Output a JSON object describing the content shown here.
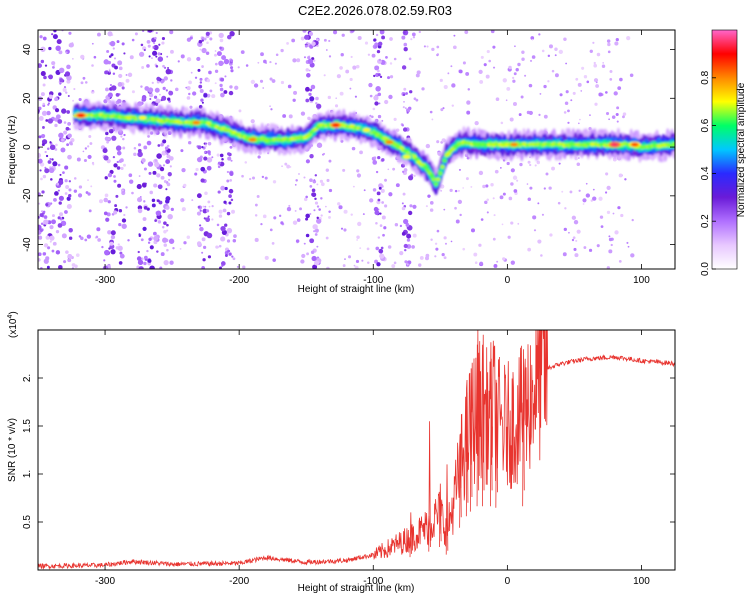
{
  "title": "C2E2.2026.078.02.59.R03",
  "charts": [
    {
      "type": "heatmap",
      "xlabel": "Height of straight line (km)",
      "ylabel": "Frequency (Hz)",
      "xlim": [
        -350,
        125
      ],
      "ylim": [
        -50,
        48
      ],
      "xticks": [
        -300,
        -200,
        -100,
        0,
        100
      ],
      "yticks": [
        -40,
        -20,
        0,
        20,
        40
      ],
      "grid": false,
      "colorbar": {
        "label": "Normalized spectral amplitude",
        "range": [
          0,
          1
        ],
        "ticks": [
          0.0,
          0.2,
          0.4,
          0.6,
          0.8
        ],
        "colors": [
          "#ffffff",
          "#e8c8ff",
          "#b070ff",
          "#6a1bd8",
          "#2a2aff",
          "#00c8ff",
          "#00ff66",
          "#ffff00",
          "#ff8800",
          "#ff0000",
          "#ff66cc"
        ]
      },
      "ridge": [
        [
          -322,
          13
        ],
        [
          -300,
          13
        ],
        [
          -280,
          12
        ],
        [
          -260,
          11
        ],
        [
          -240,
          10
        ],
        [
          -225,
          10
        ],
        [
          -210,
          7
        ],
        [
          -195,
          4
        ],
        [
          -180,
          3
        ],
        [
          -165,
          3
        ],
        [
          -150,
          4
        ],
        [
          -140,
          9
        ],
        [
          -125,
          9
        ],
        [
          -110,
          8
        ],
        [
          -100,
          6
        ],
        [
          -90,
          3
        ],
        [
          -80,
          0
        ],
        [
          -70,
          -4
        ],
        [
          -60,
          -9
        ],
        [
          -53,
          -15
        ],
        [
          -45,
          -3
        ],
        [
          -35,
          2
        ],
        [
          -20,
          1
        ],
        [
          0,
          1
        ],
        [
          20,
          1
        ],
        [
          60,
          1
        ],
        [
          90,
          1
        ],
        [
          100,
          0
        ],
        [
          125,
          1
        ]
      ],
      "bright_spots": [
        {
          "x": -318,
          "y": 13,
          "level": 0.9
        },
        {
          "x": -272,
          "y": 12,
          "level": 0.7
        },
        {
          "x": -232,
          "y": 10,
          "level": 0.8
        },
        {
          "x": -190,
          "y": 3,
          "level": 0.8
        },
        {
          "x": -128,
          "y": 9,
          "level": 0.9
        },
        {
          "x": -105,
          "y": 7,
          "level": 0.7
        },
        {
          "x": -88,
          "y": 2,
          "level": 0.8
        },
        {
          "x": -75,
          "y": -4,
          "level": 0.7
        },
        {
          "x": 5,
          "y": 1,
          "level": 0.8
        },
        {
          "x": 80,
          "y": 1,
          "level": 0.95
        },
        {
          "x": 95,
          "y": 1,
          "level": 0.85
        }
      ],
      "noise_bands": [
        [
          -350,
          -325
        ],
        [
          -300,
          -285
        ],
        [
          -275,
          -250
        ],
        [
          -230,
          -222
        ],
        [
          -215,
          -205
        ],
        [
          -150,
          -140
        ],
        [
          -100,
          -92
        ],
        [
          -78,
          -72
        ]
      ]
    },
    {
      "type": "line",
      "xlabel": "Height of straight line (km)",
      "ylabel": "SNR (10 * v/v)",
      "multiplier": "(x10",
      "multiplier_exp": "4",
      "multiplier_close": ")",
      "xlim": [
        -350,
        125
      ],
      "ylim": [
        0,
        2.5
      ],
      "xticks": [
        -300,
        -200,
        -100,
        0,
        100
      ],
      "yticks": [
        0.5,
        1.0,
        1.5,
        2.0
      ],
      "ytick_labels": [
        "0.5",
        "1.",
        "1.5",
        "2."
      ],
      "grid": false,
      "color": "#e8342f",
      "envelope": [
        [
          -350,
          0.03
        ],
        [
          -300,
          0.04
        ],
        [
          -280,
          0.08
        ],
        [
          -250,
          0.05
        ],
        [
          -200,
          0.06
        ],
        [
          -180,
          0.12
        ],
        [
          -150,
          0.07
        ],
        [
          -120,
          0.09
        ],
        [
          -100,
          0.15
        ],
        [
          -85,
          0.25
        ],
        [
          -70,
          0.35
        ],
        [
          -60,
          0.45
        ],
        [
          -50,
          0.6
        ],
        [
          -45,
          0.4
        ],
        [
          -40,
          0.7
        ],
        [
          -35,
          1.1
        ],
        [
          -30,
          1.4
        ],
        [
          -25,
          1.6
        ],
        [
          -20,
          1.7
        ],
        [
          -15,
          1.6
        ],
        [
          -10,
          1.7
        ],
        [
          -5,
          1.5
        ],
        [
          0,
          1.5
        ],
        [
          10,
          1.6
        ],
        [
          20,
          1.9
        ],
        [
          30,
          2.1
        ],
        [
          40,
          2.15
        ],
        [
          60,
          2.2
        ],
        [
          80,
          2.22
        ],
        [
          100,
          2.18
        ],
        [
          125,
          2.15
        ]
      ],
      "spikes": [
        {
          "x": -58,
          "y": 1.55
        },
        {
          "x": -35,
          "y": 1.4
        },
        {
          "x": -30,
          "y": 1.85
        },
        {
          "x": -27,
          "y": 2.1
        },
        {
          "x": -22,
          "y": 2.5
        },
        {
          "x": -18,
          "y": 2.45
        },
        {
          "x": -12,
          "y": 2.2
        },
        {
          "x": -8,
          "y": 1.95
        },
        {
          "x": 12,
          "y": 2.3
        },
        {
          "x": -50,
          "y": 0.9
        },
        {
          "x": -45,
          "y": 1.1
        },
        {
          "x": -72,
          "y": 0.6
        }
      ]
    }
  ]
}
